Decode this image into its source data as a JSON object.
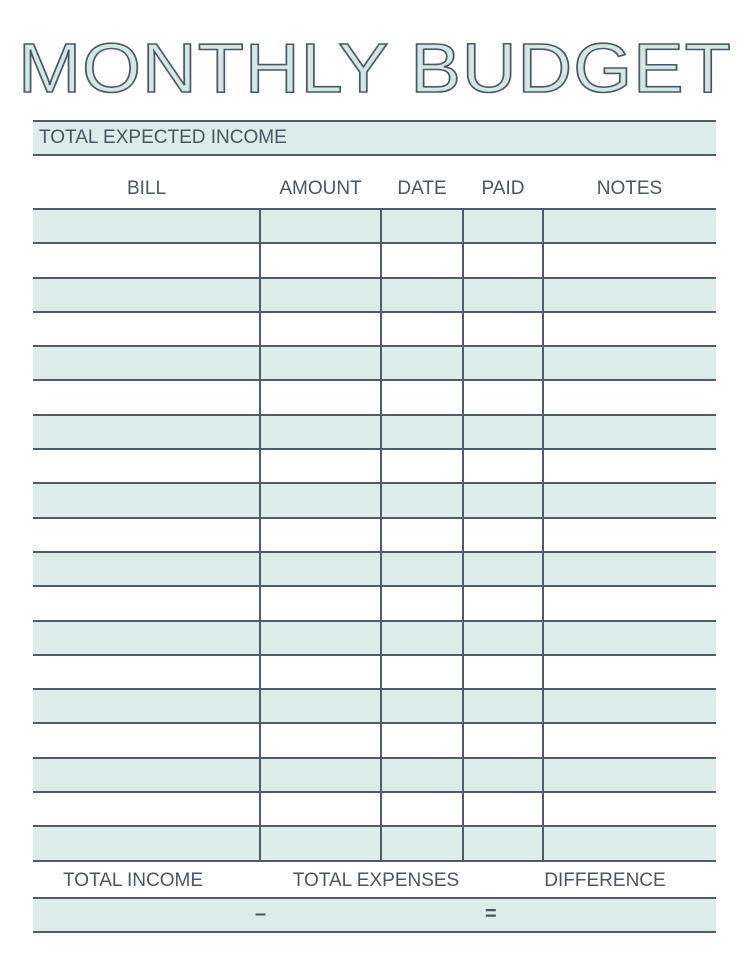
{
  "title": "MONTHLY BUDGET",
  "income_label": "TOTAL EXPECTED INCOME",
  "columns": [
    "BILL",
    "AMOUNT",
    "DATE",
    "PAID",
    "NOTES"
  ],
  "row_count": 19,
  "colors": {
    "band": "#dcece8",
    "lines": "#4f5d6b",
    "text": "#4a5563"
  },
  "footer": {
    "labels": [
      "TOTAL INCOME",
      "TOTAL EXPENSES",
      "DIFFERENCE"
    ],
    "minus": "–",
    "equals": "="
  }
}
